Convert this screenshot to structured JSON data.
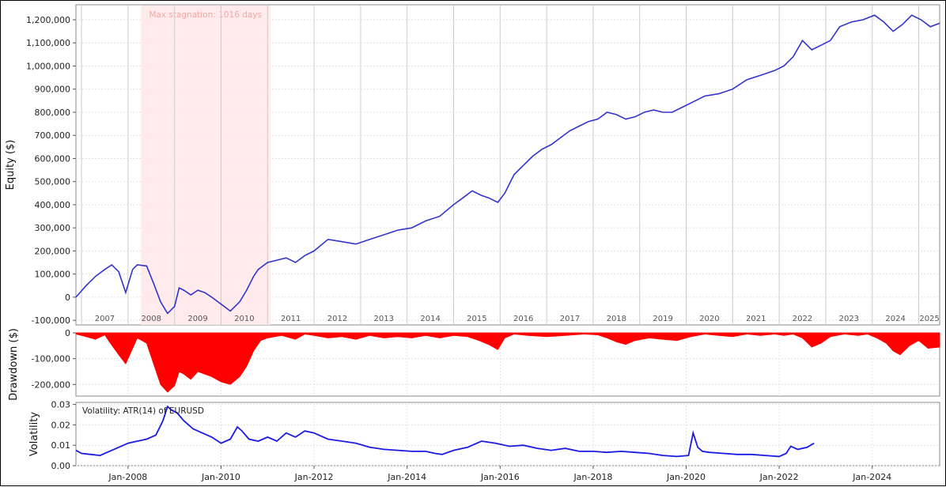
{
  "chart_data": [
    {
      "type": "line",
      "ylabel": "Equity ($)",
      "ylim": [
        -120000,
        1265000
      ],
      "yticks": [
        -100000,
        0,
        100000,
        200000,
        300000,
        400000,
        500000,
        600000,
        700000,
        800000,
        900000,
        1000000,
        1100000,
        1200000
      ],
      "ytick_labels": [
        "-100,000",
        "0",
        "100,000",
        "200,000",
        "300,000",
        "400,000",
        "500,000",
        "600,000",
        "700,000",
        "800,000",
        "900,000",
        "1,000,000",
        "1,100,000",
        "1,200,000"
      ],
      "year_labels": [
        "2007",
        "2008",
        "2009",
        "2010",
        "2011",
        "2012",
        "2013",
        "2014",
        "2015",
        "2016",
        "2017",
        "2018",
        "2019",
        "2020",
        "2021",
        "2022",
        "2023",
        "2024",
        "2025"
      ],
      "xlim": [
        2006.88,
        2025.45
      ],
      "annotation": {
        "label": "Max stagnation: 1016 days",
        "start": 2008.28,
        "end": 2011.06
      },
      "series": [
        {
          "color": "#3333cc",
          "x": [
            2006.88,
            2007.1,
            2007.3,
            2007.5,
            2007.65,
            2007.8,
            2007.95,
            2008.1,
            2008.2,
            2008.4,
            2008.55,
            2008.7,
            2008.85,
            2009.0,
            2009.1,
            2009.2,
            2009.35,
            2009.5,
            2009.65,
            2009.8,
            2010.0,
            2010.2,
            2010.4,
            2010.55,
            2010.7,
            2010.8,
            2011.0,
            2011.2,
            2011.4,
            2011.6,
            2011.8,
            2012.0,
            2012.3,
            2012.6,
            2012.9,
            2013.2,
            2013.5,
            2013.8,
            2014.1,
            2014.4,
            2014.7,
            2015.0,
            2015.2,
            2015.4,
            2015.6,
            2015.75,
            2015.95,
            2016.1,
            2016.3,
            2016.5,
            2016.7,
            2016.9,
            2017.1,
            2017.3,
            2017.5,
            2017.7,
            2017.9,
            2018.1,
            2018.3,
            2018.5,
            2018.7,
            2018.9,
            2019.1,
            2019.3,
            2019.5,
            2019.7,
            2019.9,
            2020.1,
            2020.4,
            2020.7,
            2021.0,
            2021.3,
            2021.6,
            2021.9,
            2022.1,
            2022.3,
            2022.5,
            2022.7,
            2022.9,
            2023.1,
            2023.3,
            2023.55,
            2023.8,
            2024.05,
            2024.25,
            2024.45,
            2024.65,
            2024.85,
            2025.05,
            2025.25,
            2025.45
          ],
          "y": [
            0,
            50000,
            90000,
            120000,
            140000,
            110000,
            20000,
            120000,
            140000,
            135000,
            60000,
            -20000,
            -70000,
            -40000,
            40000,
            30000,
            10000,
            30000,
            20000,
            0,
            -30000,
            -60000,
            -20000,
            30000,
            90000,
            120000,
            150000,
            160000,
            170000,
            150000,
            180000,
            200000,
            250000,
            240000,
            230000,
            250000,
            270000,
            290000,
            300000,
            330000,
            350000,
            400000,
            430000,
            460000,
            440000,
            430000,
            410000,
            450000,
            530000,
            570000,
            610000,
            640000,
            660000,
            690000,
            720000,
            740000,
            760000,
            770000,
            800000,
            790000,
            770000,
            780000,
            800000,
            810000,
            800000,
            800000,
            820000,
            840000,
            870000,
            880000,
            900000,
            940000,
            960000,
            980000,
            1000000,
            1040000,
            1110000,
            1070000,
            1090000,
            1110000,
            1170000,
            1190000,
            1200000,
            1220000,
            1190000,
            1150000,
            1180000,
            1220000,
            1200000,
            1170000,
            1185000
          ]
        }
      ]
    },
    {
      "type": "area",
      "ylabel": "Drawdown ($)",
      "ylim": [
        -245000,
        0
      ],
      "yticks": [
        0,
        -100000,
        -200000
      ],
      "ytick_labels": [
        "0",
        "-100,000",
        "-200,000"
      ],
      "series": [
        {
          "color": "#ff0000",
          "x": [
            2006.88,
            2007.1,
            2007.3,
            2007.5,
            2007.6,
            2007.8,
            2007.95,
            2008.1,
            2008.2,
            2008.4,
            2008.55,
            2008.7,
            2008.85,
            2009.0,
            2009.1,
            2009.2,
            2009.35,
            2009.5,
            2009.65,
            2009.8,
            2010.0,
            2010.2,
            2010.4,
            2010.55,
            2010.7,
            2010.85,
            2011.0,
            2011.3,
            2011.6,
            2011.8,
            2012.0,
            2012.3,
            2012.6,
            2012.9,
            2013.2,
            2013.5,
            2013.8,
            2014.1,
            2014.4,
            2014.7,
            2015.0,
            2015.3,
            2015.55,
            2015.75,
            2015.95,
            2016.1,
            2016.3,
            2016.6,
            2017.0,
            2017.4,
            2017.8,
            2018.1,
            2018.3,
            2018.5,
            2018.7,
            2018.9,
            2019.2,
            2019.5,
            2019.8,
            2020.1,
            2020.4,
            2020.7,
            2021.0,
            2021.3,
            2021.6,
            2021.9,
            2022.1,
            2022.3,
            2022.5,
            2022.7,
            2022.9,
            2023.1,
            2023.4,
            2023.7,
            2023.9,
            2024.1,
            2024.3,
            2024.45,
            2024.6,
            2024.8,
            2025.0,
            2025.2,
            2025.45
          ],
          "y": [
            -5000,
            -15000,
            -25000,
            -8000,
            -35000,
            -85000,
            -120000,
            -60000,
            -20000,
            -40000,
            -120000,
            -200000,
            -230000,
            -205000,
            -150000,
            -160000,
            -180000,
            -150000,
            -160000,
            -170000,
            -190000,
            -200000,
            -170000,
            -130000,
            -70000,
            -30000,
            -20000,
            -10000,
            -25000,
            -5000,
            -10000,
            -20000,
            -15000,
            -25000,
            -10000,
            -20000,
            -15000,
            -20000,
            -10000,
            -20000,
            -10000,
            -15000,
            -30000,
            -45000,
            -65000,
            -20000,
            -5000,
            -10000,
            -15000,
            -10000,
            -5000,
            -8000,
            -20000,
            -35000,
            -45000,
            -30000,
            -20000,
            -25000,
            -30000,
            -15000,
            -5000,
            -10000,
            -15000,
            -5000,
            -10000,
            -5000,
            -10000,
            -5000,
            -20000,
            -55000,
            -40000,
            -15000,
            -5000,
            -10000,
            -5000,
            -20000,
            -40000,
            -70000,
            -85000,
            -50000,
            -30000,
            -60000,
            -55000
          ]
        }
      ]
    },
    {
      "type": "line",
      "ylabel": "Volatility",
      "legend": "Volatility: ATR(14) of EURUSD",
      "ylim": [
        0,
        0.031
      ],
      "yticks": [
        0.0,
        0.01,
        0.02,
        0.03
      ],
      "ytick_labels": [
        "0.00",
        "0.01",
        "0.02",
        "0.03"
      ],
      "xtick_labels": [
        "Jan-2008",
        "Jan-2010",
        "Jan-2012",
        "Jan-2014",
        "Jan-2016",
        "Jan-2018",
        "Jan-2020",
        "Jan-2022",
        "Jan-2024"
      ],
      "xtick_years": [
        2008.0,
        2010.0,
        2012.0,
        2014.0,
        2016.0,
        2018.0,
        2020.0,
        2022.0,
        2024.0
      ],
      "series": [
        {
          "color": "#1a1ae6",
          "x": [
            2006.88,
            2007.0,
            2007.2,
            2007.4,
            2007.6,
            2007.8,
            2008.0,
            2008.2,
            2008.4,
            2008.6,
            2008.75,
            2008.85,
            2008.95,
            2009.05,
            2009.2,
            2009.4,
            2009.6,
            2009.8,
            2010.0,
            2010.2,
            2010.35,
            2010.45,
            2010.6,
            2010.8,
            2011.0,
            2011.2,
            2011.4,
            2011.6,
            2011.8,
            2012.0,
            2012.3,
            2012.6,
            2012.9,
            2013.2,
            2013.5,
            2013.8,
            2014.1,
            2014.4,
            2014.6,
            2014.75,
            2015.0,
            2015.3,
            2015.6,
            2015.9,
            2016.2,
            2016.5,
            2016.8,
            2017.1,
            2017.4,
            2017.7,
            2018.0,
            2018.3,
            2018.6,
            2018.9,
            2019.2,
            2019.5,
            2019.8,
            2020.05,
            2020.15,
            2020.25,
            2020.35,
            2020.5,
            2020.8,
            2021.1,
            2021.4,
            2021.7,
            2022.0,
            2022.15,
            2022.25,
            2022.4,
            2022.6,
            2022.75
          ],
          "y": [
            0.0075,
            0.006,
            0.0055,
            0.005,
            0.007,
            0.009,
            0.011,
            0.012,
            0.013,
            0.015,
            0.022,
            0.029,
            0.027,
            0.026,
            0.022,
            0.018,
            0.016,
            0.014,
            0.011,
            0.013,
            0.019,
            0.017,
            0.013,
            0.012,
            0.014,
            0.012,
            0.016,
            0.014,
            0.017,
            0.016,
            0.013,
            0.012,
            0.011,
            0.009,
            0.008,
            0.0075,
            0.007,
            0.007,
            0.006,
            0.0055,
            0.0075,
            0.009,
            0.012,
            0.011,
            0.0095,
            0.01,
            0.0085,
            0.0075,
            0.0085,
            0.007,
            0.007,
            0.0065,
            0.007,
            0.0065,
            0.006,
            0.005,
            0.0045,
            0.005,
            0.016,
            0.009,
            0.007,
            0.0065,
            0.006,
            0.0055,
            0.0055,
            0.005,
            0.0045,
            0.006,
            0.0095,
            0.008,
            0.009,
            0.011
          ]
        }
      ]
    }
  ]
}
